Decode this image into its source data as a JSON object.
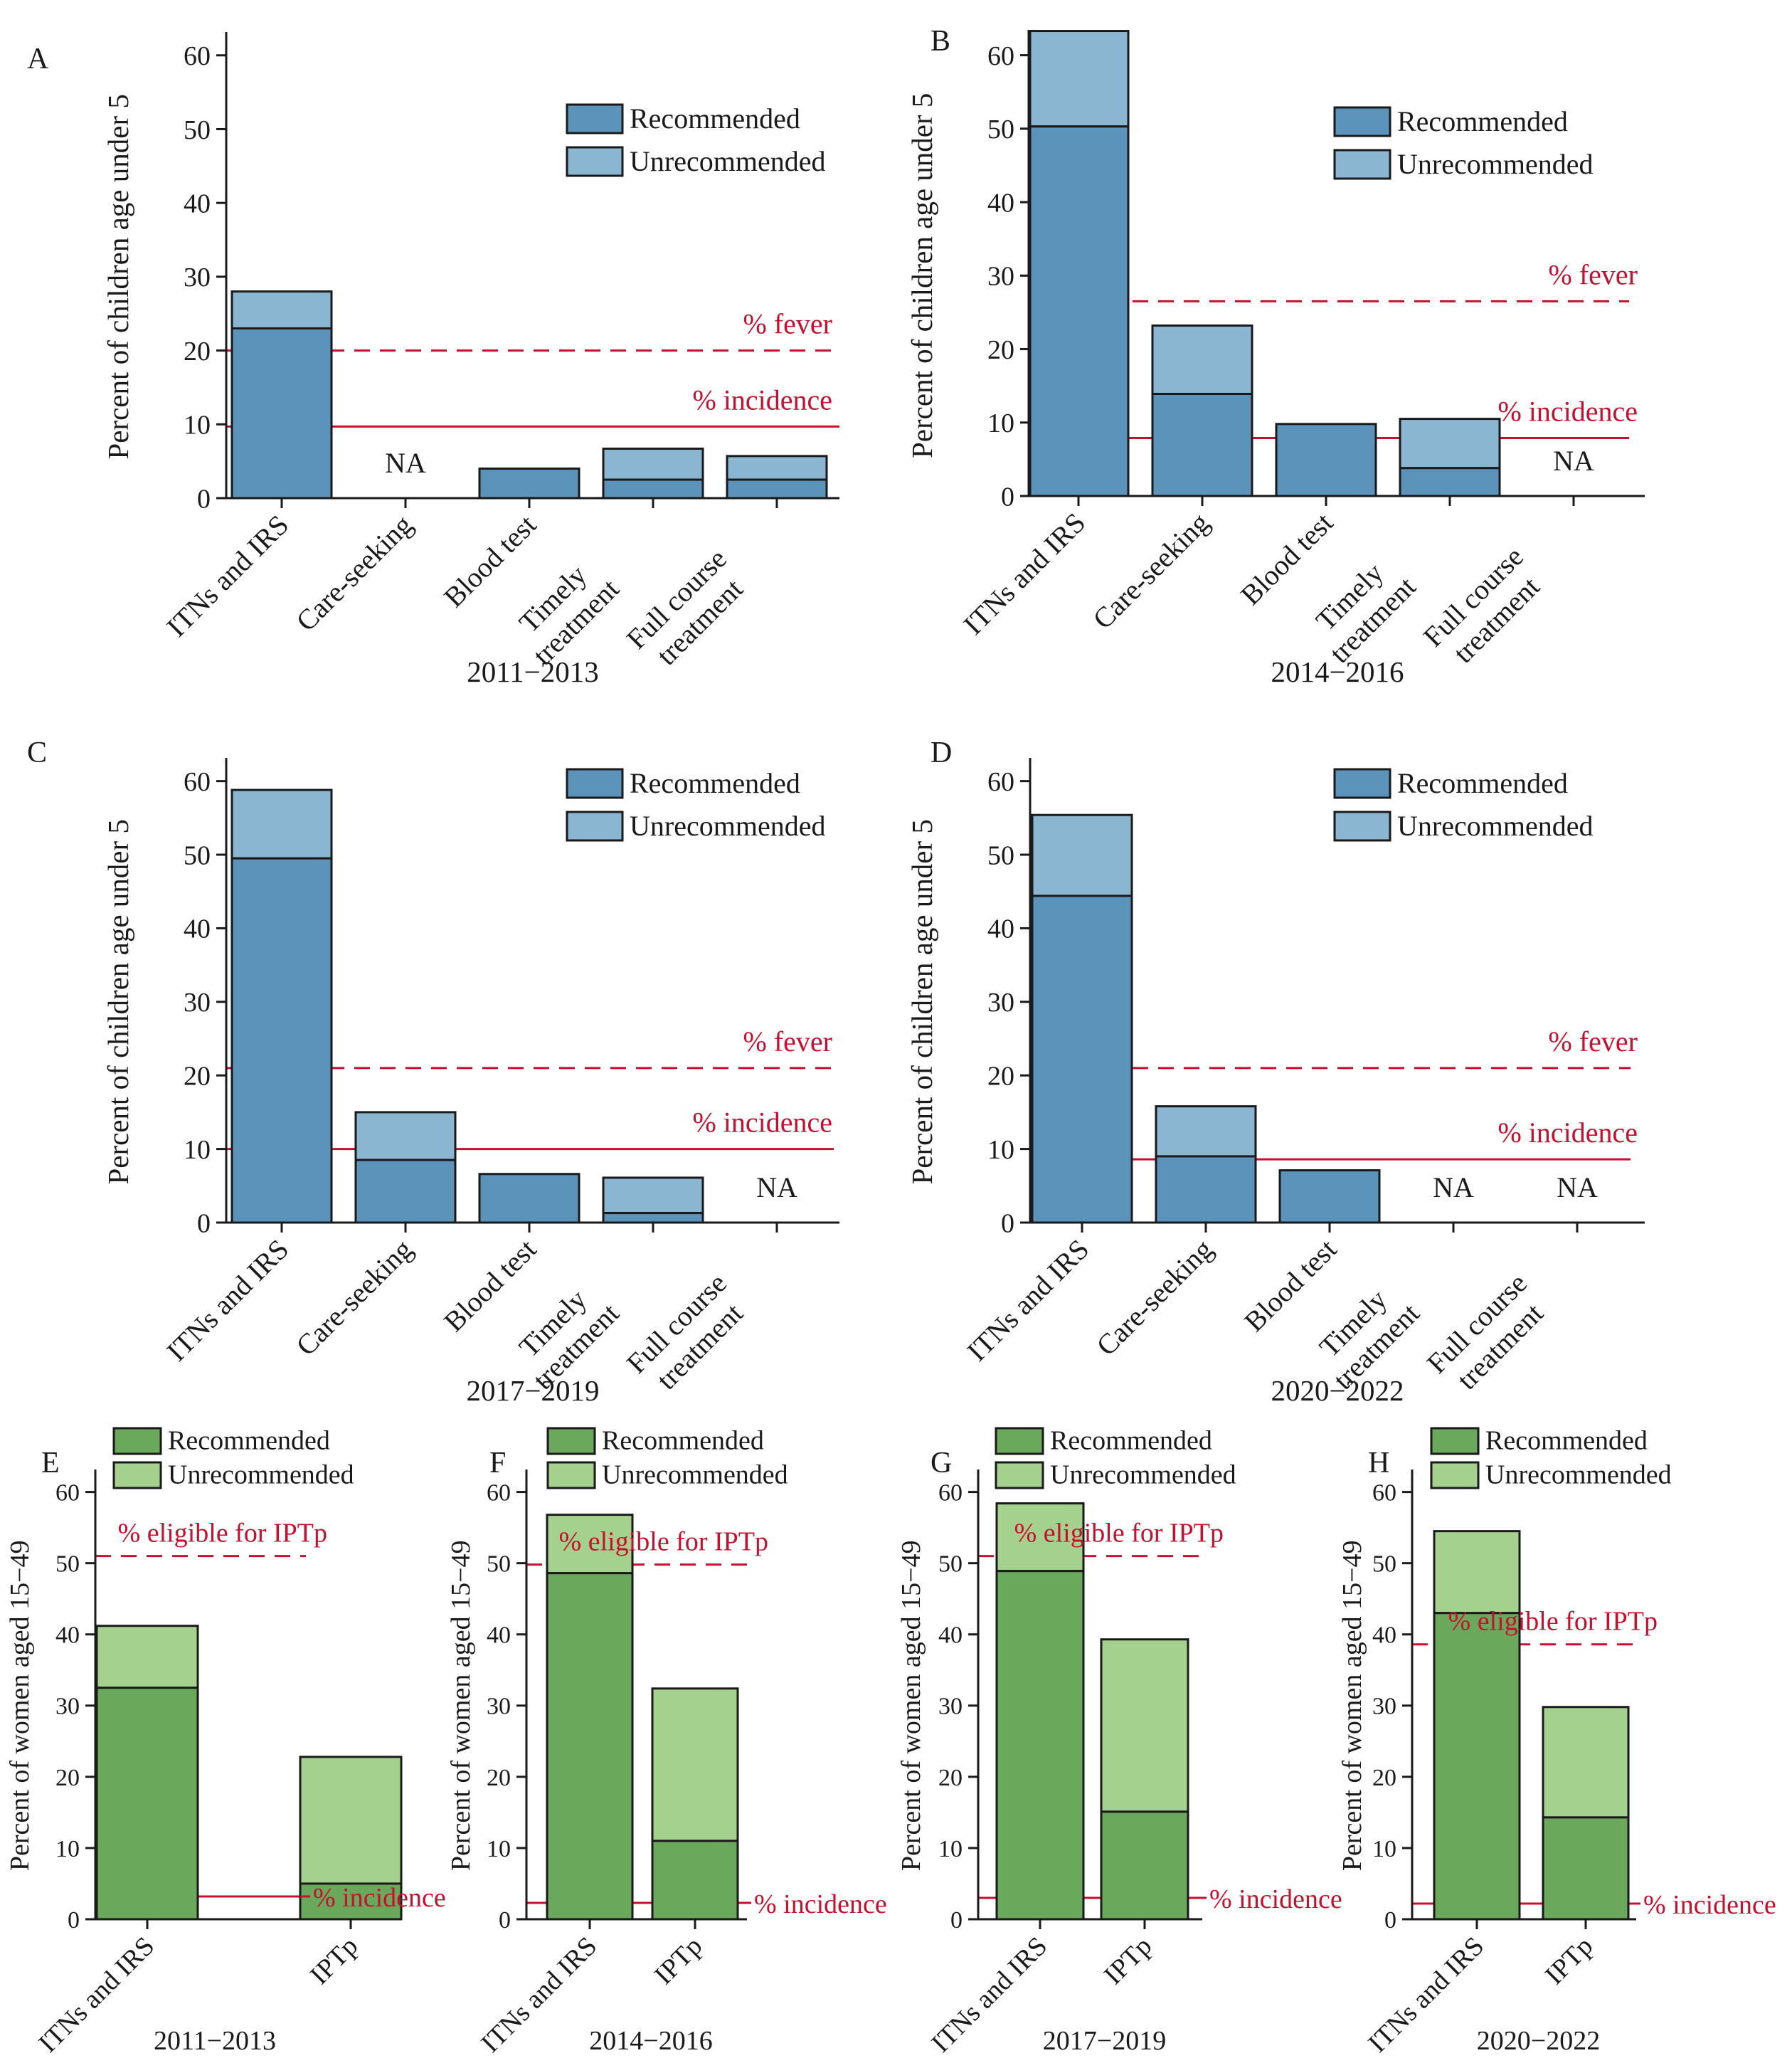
{
  "colors": {
    "blue_recommended": "#5b93bb",
    "blue_unrecommended": "#8ab6d2",
    "green_recommended": "#6aa85c",
    "green_unrecommended": "#a5d18e",
    "reference_red": "#c8102e",
    "outline": "#1a1a1a"
  },
  "legend": {
    "recommended": "Recommended",
    "unrecommended": "Unrecommended"
  },
  "na_label": "NA",
  "chart_data": [
    {
      "panel": "A",
      "type": "bar",
      "stacked": true,
      "period": "2011−2013",
      "ylabel": "Percent of children age under 5",
      "ylim": [
        0,
        60
      ],
      "yticks": [
        0,
        10,
        20,
        30,
        40,
        50,
        60
      ],
      "categories": [
        "ITNs and IRS",
        "Care-seeking",
        "Blood test",
        "Timely treatment",
        "Full course treatment"
      ],
      "category_lines": [
        [
          "ITNs and IRS"
        ],
        [
          "Care-seeking"
        ],
        [
          "Blood test"
        ],
        [
          "Timely",
          "treatment"
        ],
        [
          "Full course",
          "treatment"
        ]
      ],
      "series": [
        {
          "name": "Recommended",
          "values": [
            23,
            null,
            4,
            2.5,
            2.5
          ]
        },
        {
          "name": "Unrecommended",
          "values": [
            5,
            null,
            0,
            4.2,
            3.2
          ]
        }
      ],
      "reference_lines": [
        {
          "label": "% fever",
          "value": 20,
          "style": "dashed"
        },
        {
          "label": "% incidence",
          "value": 9.7,
          "style": "solid"
        }
      ],
      "legend_position": "top-right"
    },
    {
      "panel": "B",
      "type": "bar",
      "stacked": true,
      "period": "2014−2016",
      "ylabel": "Percent of children age under 5",
      "ylim": [
        0,
        60
      ],
      "yticks": [
        0,
        10,
        20,
        30,
        40,
        50,
        60
      ],
      "categories": [
        "ITNs and IRS",
        "Care-seeking",
        "Blood test",
        "Timely treatment",
        "Full course treatment"
      ],
      "category_lines": [
        [
          "ITNs and IRS"
        ],
        [
          "Care-seeking"
        ],
        [
          "Blood test"
        ],
        [
          "Timely",
          "treatment"
        ],
        [
          "Full course",
          "treatment"
        ]
      ],
      "series": [
        {
          "name": "Recommended",
          "values": [
            50.3,
            13.9,
            9.8,
            3.8,
            null
          ]
        },
        {
          "name": "Unrecommended",
          "values": [
            13,
            9.3,
            0,
            6.7,
            null
          ]
        }
      ],
      "reference_lines": [
        {
          "label": "% fever",
          "value": 26.5,
          "style": "dashed"
        },
        {
          "label": "% incidence",
          "value": 7.9,
          "style": "solid"
        }
      ],
      "legend_position": "top-right"
    },
    {
      "panel": "C",
      "type": "bar",
      "stacked": true,
      "period": "2017−2019",
      "ylabel": "Percent of children age under 5",
      "ylim": [
        0,
        60
      ],
      "yticks": [
        0,
        10,
        20,
        30,
        40,
        50,
        60
      ],
      "categories": [
        "ITNs and IRS",
        "Care-seeking",
        "Blood test",
        "Timely treatment",
        "Full course treatment"
      ],
      "category_lines": [
        [
          "ITNs and IRS"
        ],
        [
          "Care-seeking"
        ],
        [
          "Blood test"
        ],
        [
          "Timely",
          "treatment"
        ],
        [
          "Full course",
          "treatment"
        ]
      ],
      "series": [
        {
          "name": "Recommended",
          "values": [
            49.5,
            8.5,
            6.6,
            1.3,
            null
          ]
        },
        {
          "name": "Unrecommended",
          "values": [
            9.3,
            6.5,
            0,
            4.8,
            null
          ]
        }
      ],
      "reference_lines": [
        {
          "label": "% fever",
          "value": 21,
          "style": "dashed"
        },
        {
          "label": "% incidence",
          "value": 10,
          "style": "solid"
        }
      ],
      "legend_position": "top-right"
    },
    {
      "panel": "D",
      "type": "bar",
      "stacked": true,
      "period": "2020−2022",
      "ylabel": "Percent of children age under 5",
      "ylim": [
        0,
        60
      ],
      "yticks": [
        0,
        10,
        20,
        30,
        40,
        50,
        60
      ],
      "categories": [
        "ITNs and IRS",
        "Care-seeking",
        "Blood test",
        "Timely treatment",
        "Full course treatment"
      ],
      "category_lines": [
        [
          "ITNs and IRS"
        ],
        [
          "Care-seeking"
        ],
        [
          "Blood test"
        ],
        [
          "Timely",
          "treatment"
        ],
        [
          "Full course",
          "treatment"
        ]
      ],
      "series": [
        {
          "name": "Recommended",
          "values": [
            44.4,
            9,
            7.1,
            null,
            null
          ]
        },
        {
          "name": "Unrecommended",
          "values": [
            11,
            6.8,
            0,
            null,
            null
          ]
        }
      ],
      "reference_lines": [
        {
          "label": "% fever",
          "value": 21,
          "style": "dashed"
        },
        {
          "label": "% incidence",
          "value": 8.6,
          "style": "solid"
        }
      ],
      "legend_position": "top-right"
    },
    {
      "panel": "E",
      "type": "bar",
      "stacked": true,
      "period": "2011−2013",
      "ylabel": "Percent of women aged 15−49",
      "ylim": [
        0,
        60
      ],
      "yticks": [
        0,
        10,
        20,
        30,
        40,
        50,
        60
      ],
      "categories": [
        "ITNs and IRS",
        "IPTp"
      ],
      "category_lines": [
        [
          "ITNs and IRS"
        ],
        [
          "IPTp"
        ]
      ],
      "series": [
        {
          "name": "Recommended",
          "values": [
            32.5,
            5
          ]
        },
        {
          "name": "Unrecommended",
          "values": [
            8.7,
            17.8
          ]
        }
      ],
      "reference_lines": [
        {
          "label": "% eligible for IPTp",
          "value": 51,
          "style": "dashed"
        },
        {
          "label": "% incidence",
          "value": 3.2,
          "style": "solid"
        }
      ],
      "legend_position": "top"
    },
    {
      "panel": "F",
      "type": "bar",
      "stacked": true,
      "period": "2014−2016",
      "ylabel": "Percent of women aged 15−49",
      "ylim": [
        0,
        60
      ],
      "yticks": [
        0,
        10,
        20,
        30,
        40,
        50,
        60
      ],
      "categories": [
        "ITNs and IRS",
        "IPTp"
      ],
      "category_lines": [
        [
          "ITNs and IRS"
        ],
        [
          "IPTp"
        ]
      ],
      "series": [
        {
          "name": "Recommended",
          "values": [
            48.6,
            11
          ]
        },
        {
          "name": "Unrecommended",
          "values": [
            8.2,
            21.4
          ]
        }
      ],
      "reference_lines": [
        {
          "label": "% eligible for IPTp",
          "value": 49.8,
          "style": "dashed"
        },
        {
          "label": "% incidence",
          "value": 2.3,
          "style": "solid"
        }
      ],
      "legend_position": "top"
    },
    {
      "panel": "G",
      "type": "bar",
      "stacked": true,
      "period": "2017−2019",
      "ylabel": "Percent of women aged 15−49",
      "ylim": [
        0,
        60
      ],
      "yticks": [
        0,
        10,
        20,
        30,
        40,
        50,
        60
      ],
      "categories": [
        "ITNs and IRS",
        "IPTp"
      ],
      "category_lines": [
        [
          "ITNs and IRS"
        ],
        [
          "IPTp"
        ]
      ],
      "series": [
        {
          "name": "Recommended",
          "values": [
            48.9,
            15.1
          ]
        },
        {
          "name": "Unrecommended",
          "values": [
            9.5,
            24.2
          ]
        }
      ],
      "reference_lines": [
        {
          "label": "% eligible for IPTp",
          "value": 51,
          "style": "dashed"
        },
        {
          "label": "% incidence",
          "value": 3,
          "style": "solid"
        }
      ],
      "legend_position": "top"
    },
    {
      "panel": "H",
      "type": "bar",
      "stacked": true,
      "period": "2020−2022",
      "ylabel": "Percent of women aged 15−49",
      "ylim": [
        0,
        60
      ],
      "yticks": [
        0,
        10,
        20,
        30,
        40,
        50,
        60
      ],
      "categories": [
        "ITNs and IRS",
        "IPTp"
      ],
      "category_lines": [
        [
          "ITNs and IRS"
        ],
        [
          "IPTp"
        ]
      ],
      "series": [
        {
          "name": "Recommended",
          "values": [
            43,
            14.3
          ]
        },
        {
          "name": "Unrecommended",
          "values": [
            11.5,
            15.5
          ]
        }
      ],
      "reference_lines": [
        {
          "label": "% eligible for IPTp",
          "value": 38.6,
          "style": "dashed"
        },
        {
          "label": "% incidence",
          "value": 2.2,
          "style": "solid"
        }
      ],
      "legend_position": "top"
    }
  ]
}
